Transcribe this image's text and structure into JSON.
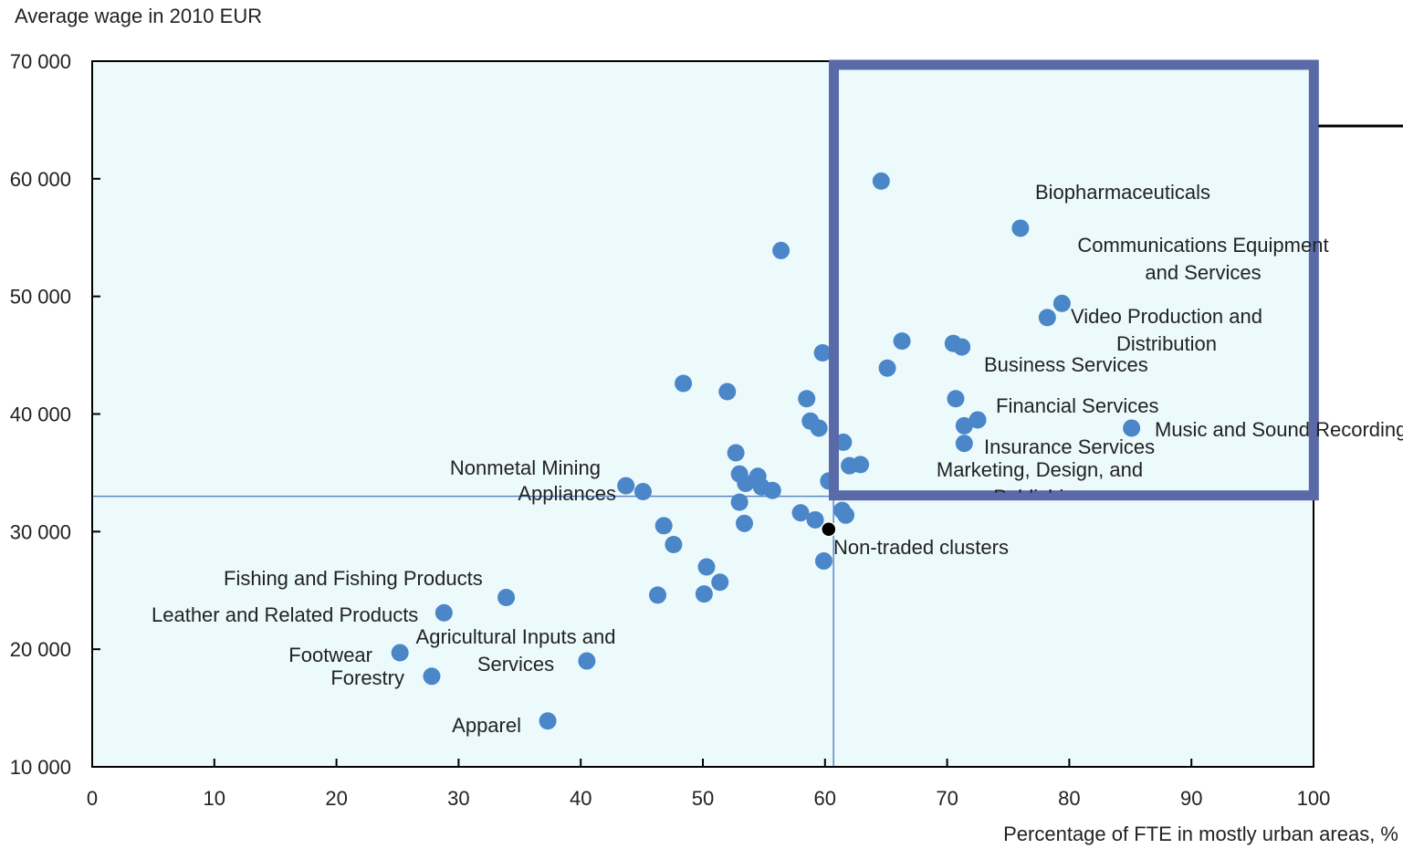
{
  "chart_data": {
    "type": "scatter",
    "ylabel": "Average wage in 2010 EUR",
    "xlabel": "Percentage of FTE in mostly urban areas, %",
    "xlim": [
      0,
      100
    ],
    "ylim": [
      10000,
      70000
    ],
    "x_ticks": [
      0,
      10,
      20,
      30,
      40,
      50,
      60,
      70,
      80,
      90,
      100
    ],
    "y_ticks": [
      10000,
      20000,
      30000,
      40000,
      50000,
      60000,
      70000
    ],
    "x_tick_labels": [
      "0",
      "10",
      "20",
      "30",
      "40",
      "50",
      "60",
      "70",
      "80",
      "90",
      "100"
    ],
    "y_tick_labels": [
      "10 000",
      "20 000",
      "30 000",
      "40 000",
      "50 000",
      "60 000",
      "70 000"
    ],
    "reference_lines": {
      "x": 60.7,
      "y": 33000
    },
    "highlight_box": {
      "x": [
        60.5,
        99.8
      ],
      "y": 33000,
      "y_top": 70000
    },
    "colors": {
      "point": "#4a86c8",
      "highlight": "#5a6aa8",
      "plot_bg": "#ecfafc",
      "ref_line": "#5b86c8",
      "special_point": "#000000"
    },
    "points": [
      {
        "x": 64.6,
        "y": 59800
      },
      {
        "x": 76.0,
        "y": 55800,
        "label": "Biopharmaceuticals"
      },
      {
        "x": 56.4,
        "y": 53900
      },
      {
        "x": 79.4,
        "y": 49400,
        "label": "Communications Equipment and Services"
      },
      {
        "x": 78.2,
        "y": 48200,
        "label": "Video Production and Distribution"
      },
      {
        "x": 66.3,
        "y": 46200
      },
      {
        "x": 70.5,
        "y": 46000
      },
      {
        "x": 71.2,
        "y": 45700
      },
      {
        "x": 59.8,
        "y": 45200
      },
      {
        "x": 65.1,
        "y": 43900,
        "label": "Business Services"
      },
      {
        "x": 48.4,
        "y": 42600
      },
      {
        "x": 52.0,
        "y": 41900
      },
      {
        "x": 70.7,
        "y": 41300,
        "label": "Financial Services"
      },
      {
        "x": 58.5,
        "y": 41300
      },
      {
        "x": 72.5,
        "y": 39500
      },
      {
        "x": 71.4,
        "y": 39000
      },
      {
        "x": 58.8,
        "y": 39400
      },
      {
        "x": 59.5,
        "y": 38800
      },
      {
        "x": 85.1,
        "y": 38800,
        "label": "Music and Sound Recording"
      },
      {
        "x": 61.5,
        "y": 37600
      },
      {
        "x": 71.4,
        "y": 37500,
        "label": "Insurance Services"
      },
      {
        "x": 52.7,
        "y": 36700
      },
      {
        "x": 62.0,
        "y": 35600,
        "label": "Marketing, Design, and Publishing"
      },
      {
        "x": 62.9,
        "y": 35700
      },
      {
        "x": 53.0,
        "y": 34900
      },
      {
        "x": 54.5,
        "y": 34700
      },
      {
        "x": 53.5,
        "y": 34100
      },
      {
        "x": 54.8,
        "y": 33800
      },
      {
        "x": 55.7,
        "y": 33500
      },
      {
        "x": 60.3,
        "y": 34300
      },
      {
        "x": 43.7,
        "y": 33900,
        "label": "Nonmetal Mining"
      },
      {
        "x": 45.1,
        "y": 33400,
        "label": "Appliances"
      },
      {
        "x": 53.0,
        "y": 32500
      },
      {
        "x": 61.4,
        "y": 31800
      },
      {
        "x": 61.7,
        "y": 31400
      },
      {
        "x": 58.0,
        "y": 31600
      },
      {
        "x": 59.2,
        "y": 31000
      },
      {
        "x": 46.8,
        "y": 30500
      },
      {
        "x": 53.4,
        "y": 30700
      },
      {
        "x": 60.3,
        "y": 30200,
        "label": "Non-traded clusters",
        "special": true
      },
      {
        "x": 47.6,
        "y": 28900
      },
      {
        "x": 59.9,
        "y": 27500
      },
      {
        "x": 50.3,
        "y": 27000
      },
      {
        "x": 51.4,
        "y": 25700
      },
      {
        "x": 46.3,
        "y": 24600
      },
      {
        "x": 50.1,
        "y": 24700
      },
      {
        "x": 33.9,
        "y": 24400,
        "label": "Fishing and Fishing Products"
      },
      {
        "x": 28.8,
        "y": 23100,
        "label": "Leather and Related Products"
      },
      {
        "x": 40.5,
        "y": 19000,
        "label": "Agricultural Inputs and Services"
      },
      {
        "x": 25.2,
        "y": 19700,
        "label": "Footwear"
      },
      {
        "x": 27.8,
        "y": 17700,
        "label": "Forestry"
      },
      {
        "x": 37.3,
        "y": 13900,
        "label": "Apparel"
      }
    ]
  }
}
